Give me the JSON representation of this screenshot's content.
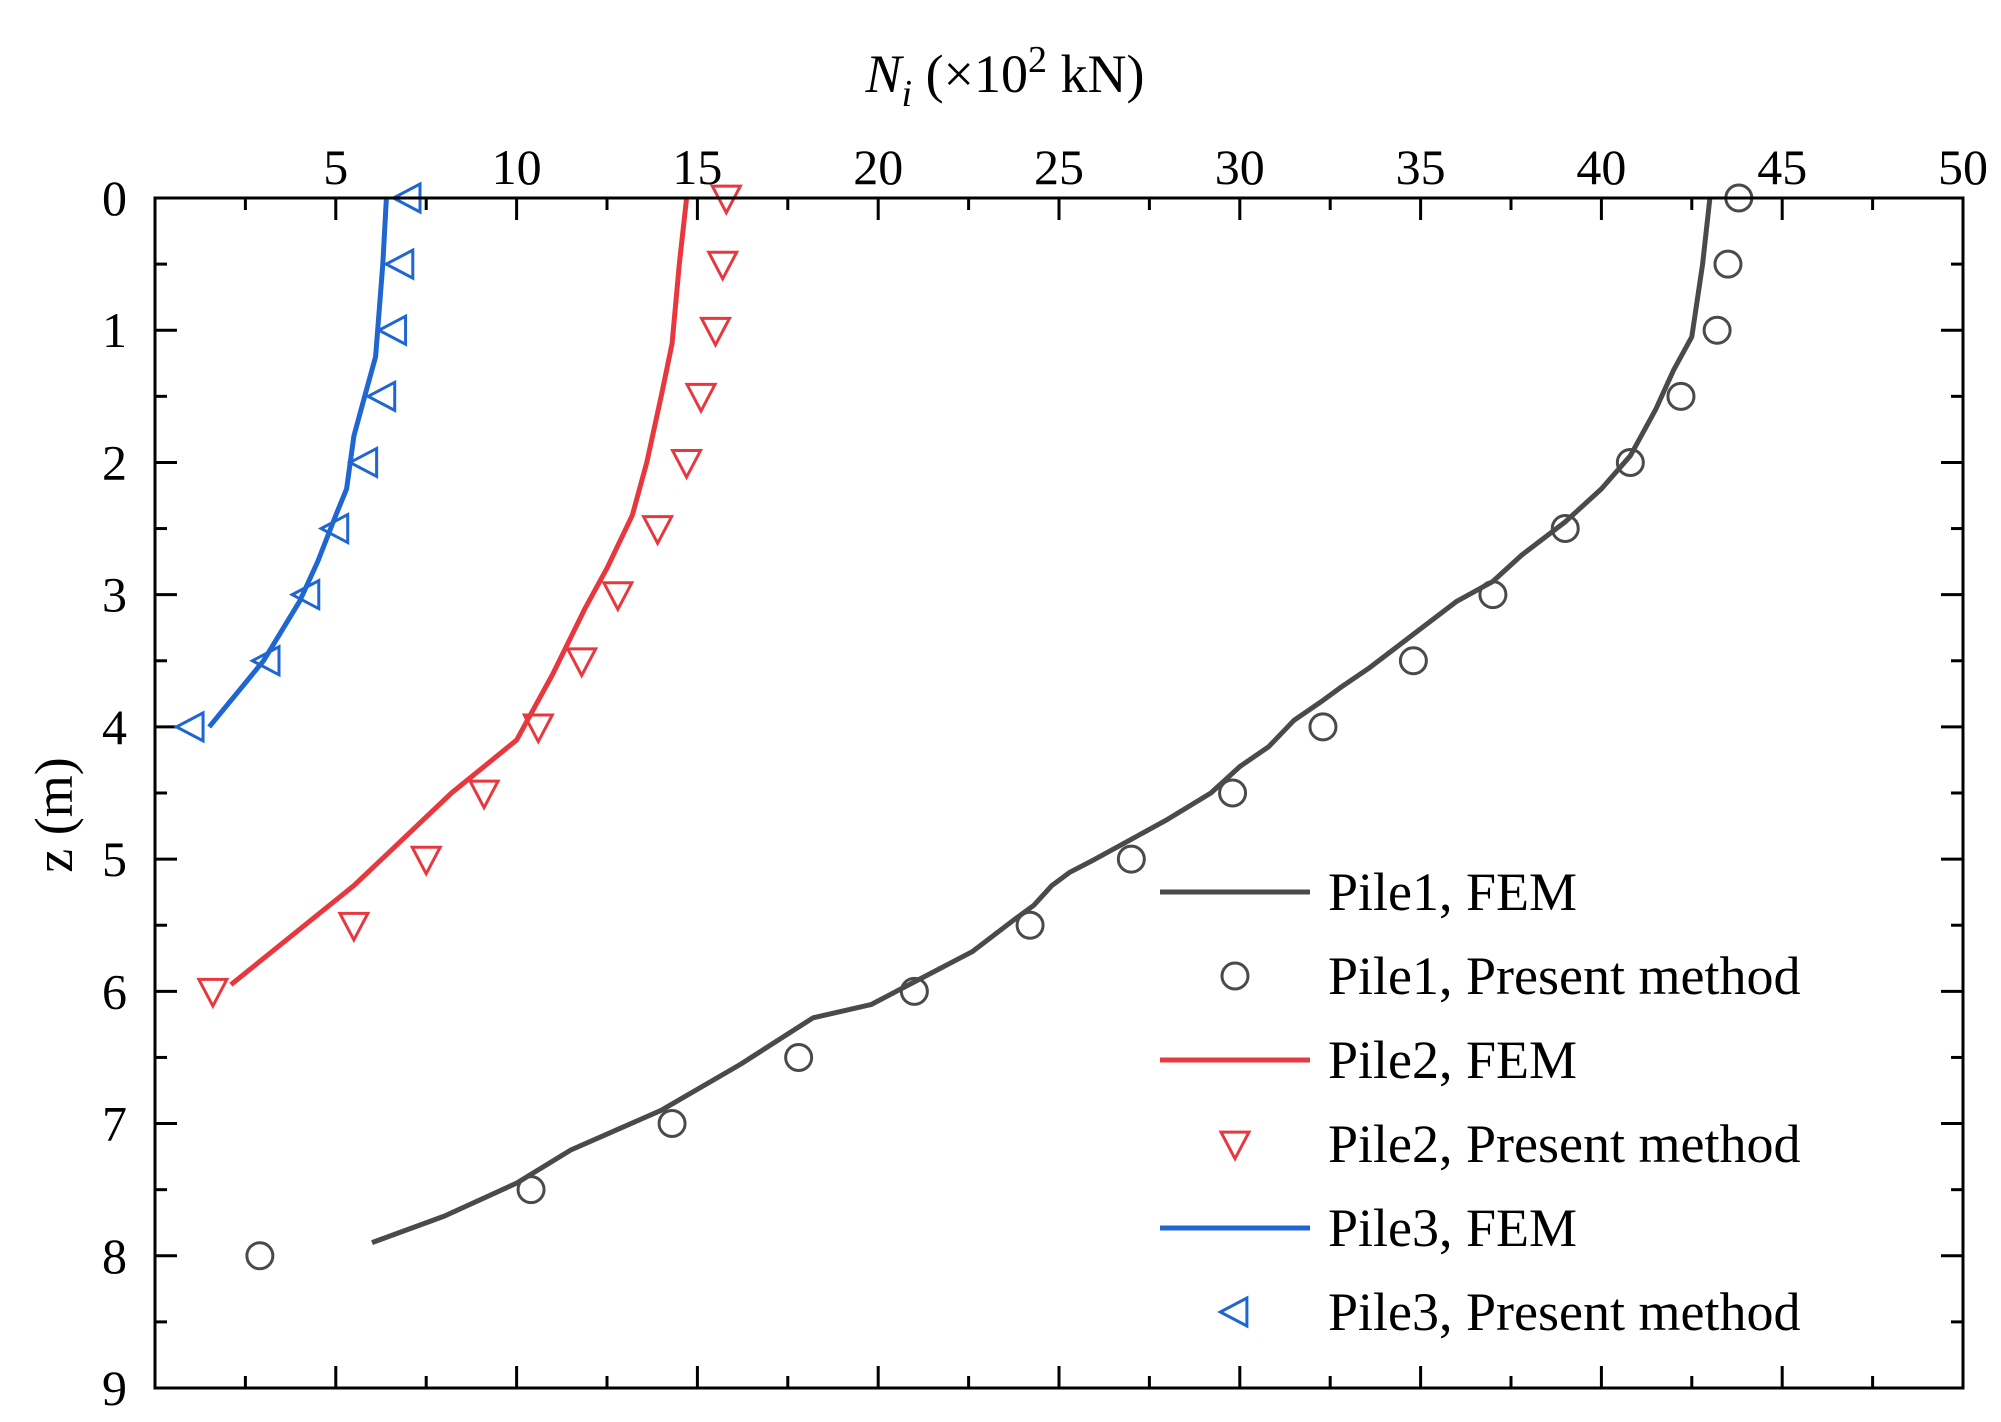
{
  "chart_data": {
    "type": "line",
    "x_axis": {
      "label_main": "N",
      "label_sub": "i",
      "label_rest": " (×10",
      "label_sup": "2",
      "label_unit": " kN)",
      "position": "top",
      "range": [
        0,
        50
      ],
      "ticks": [
        5,
        10,
        15,
        20,
        25,
        30,
        35,
        40,
        45,
        50
      ],
      "tick_labels": [
        "5",
        "10",
        "15",
        "20",
        "25",
        "30",
        "35",
        "40",
        "45",
        "50"
      ]
    },
    "y_axis": {
      "label": "z (m)",
      "range": [
        0,
        9
      ],
      "inverted": true,
      "ticks": [
        0,
        1,
        2,
        3,
        4,
        5,
        6,
        7,
        8,
        9
      ],
      "tick_labels": [
        "0",
        "1",
        "2",
        "3",
        "4",
        "5",
        "6",
        "7",
        "8",
        "9"
      ]
    },
    "legend_position": "bottom-right",
    "series": [
      {
        "name": "Pile1, FEM",
        "kind": "line",
        "color": "#4a4a4a",
        "points": [
          [
            43.0,
            0
          ],
          [
            42.8,
            0.5
          ],
          [
            42.5,
            1.05
          ],
          [
            42.0,
            1.3
          ],
          [
            41.5,
            1.6
          ],
          [
            40.8,
            1.95
          ],
          [
            40.0,
            2.2
          ],
          [
            39.0,
            2.45
          ],
          [
            37.8,
            2.7
          ],
          [
            37.0,
            2.9
          ],
          [
            36.0,
            3.05
          ],
          [
            34.8,
            3.3
          ],
          [
            33.6,
            3.55
          ],
          [
            32.8,
            3.7
          ],
          [
            32.3,
            3.8
          ],
          [
            31.5,
            3.95
          ],
          [
            30.8,
            4.15
          ],
          [
            30.0,
            4.3
          ],
          [
            29.2,
            4.5
          ],
          [
            28.0,
            4.7
          ],
          [
            27.0,
            4.85
          ],
          [
            26.0,
            5.0
          ],
          [
            25.3,
            5.1
          ],
          [
            24.8,
            5.2
          ],
          [
            24.3,
            5.35
          ],
          [
            23.8,
            5.45
          ],
          [
            22.6,
            5.7
          ],
          [
            21.2,
            5.9
          ],
          [
            19.8,
            6.1
          ],
          [
            18.2,
            6.2
          ],
          [
            16.2,
            6.55
          ],
          [
            14.0,
            6.9
          ],
          [
            11.5,
            7.2
          ],
          [
            10.0,
            7.45
          ],
          [
            8.0,
            7.7
          ],
          [
            6.0,
            7.9
          ]
        ]
      },
      {
        "name": "Pile1, Present method",
        "kind": "marker",
        "marker": "circle",
        "color": "#4a4a4a",
        "points": [
          [
            43.8,
            0
          ],
          [
            43.5,
            0.5
          ],
          [
            43.2,
            1.0
          ],
          [
            42.2,
            1.5
          ],
          [
            40.8,
            2.0
          ],
          [
            39.0,
            2.5
          ],
          [
            37.0,
            3.0
          ],
          [
            34.8,
            3.5
          ],
          [
            32.3,
            4.0
          ],
          [
            29.8,
            4.5
          ],
          [
            27.0,
            5.0
          ],
          [
            24.2,
            5.5
          ],
          [
            21.0,
            6.0
          ],
          [
            17.8,
            6.5
          ],
          [
            14.3,
            7.0
          ],
          [
            10.4,
            7.5
          ],
          [
            2.9,
            8.0
          ]
        ]
      },
      {
        "name": "Pile2, FEM",
        "kind": "line",
        "color": "#e8383f",
        "points": [
          [
            14.7,
            0
          ],
          [
            14.5,
            0.5
          ],
          [
            14.3,
            1.1
          ],
          [
            14.0,
            1.5
          ],
          [
            13.6,
            2.0
          ],
          [
            13.2,
            2.4
          ],
          [
            12.5,
            2.8
          ],
          [
            11.9,
            3.1
          ],
          [
            11.0,
            3.6
          ],
          [
            10.0,
            4.1
          ],
          [
            8.2,
            4.5
          ],
          [
            5.5,
            5.2
          ],
          [
            2.1,
            5.95
          ]
        ]
      },
      {
        "name": "Pile2, Present method",
        "kind": "marker",
        "marker": "triangle-down",
        "color": "#e8383f",
        "points": [
          [
            15.8,
            0
          ],
          [
            15.7,
            0.5
          ],
          [
            15.5,
            1.0
          ],
          [
            15.1,
            1.5
          ],
          [
            14.7,
            2.0
          ],
          [
            13.9,
            2.5
          ],
          [
            12.8,
            3.0
          ],
          [
            11.8,
            3.5
          ],
          [
            10.6,
            4.0
          ],
          [
            9.1,
            4.5
          ],
          [
            7.5,
            5.0
          ],
          [
            5.5,
            5.5
          ],
          [
            1.6,
            6.0
          ]
        ]
      },
      {
        "name": "Pile3, FEM",
        "kind": "line",
        "color": "#1f66d0",
        "points": [
          [
            6.4,
            0
          ],
          [
            6.3,
            0.5
          ],
          [
            6.1,
            1.2
          ],
          [
            5.8,
            1.5
          ],
          [
            5.5,
            1.8
          ],
          [
            5.3,
            2.2
          ],
          [
            5.0,
            2.4
          ],
          [
            4.5,
            2.75
          ],
          [
            4.0,
            3.05
          ],
          [
            3.0,
            3.5
          ],
          [
            1.5,
            4.0
          ]
        ]
      },
      {
        "name": "Pile3, Present method",
        "kind": "marker",
        "marker": "triangle-left",
        "color": "#1f66d0",
        "points": [
          [
            7.0,
            0
          ],
          [
            6.8,
            0.5
          ],
          [
            6.6,
            1.0
          ],
          [
            6.3,
            1.5
          ],
          [
            5.8,
            2.0
          ],
          [
            5.0,
            2.5
          ],
          [
            4.2,
            3.0
          ],
          [
            3.1,
            3.5
          ],
          [
            1.0,
            4.0
          ]
        ]
      }
    ]
  }
}
